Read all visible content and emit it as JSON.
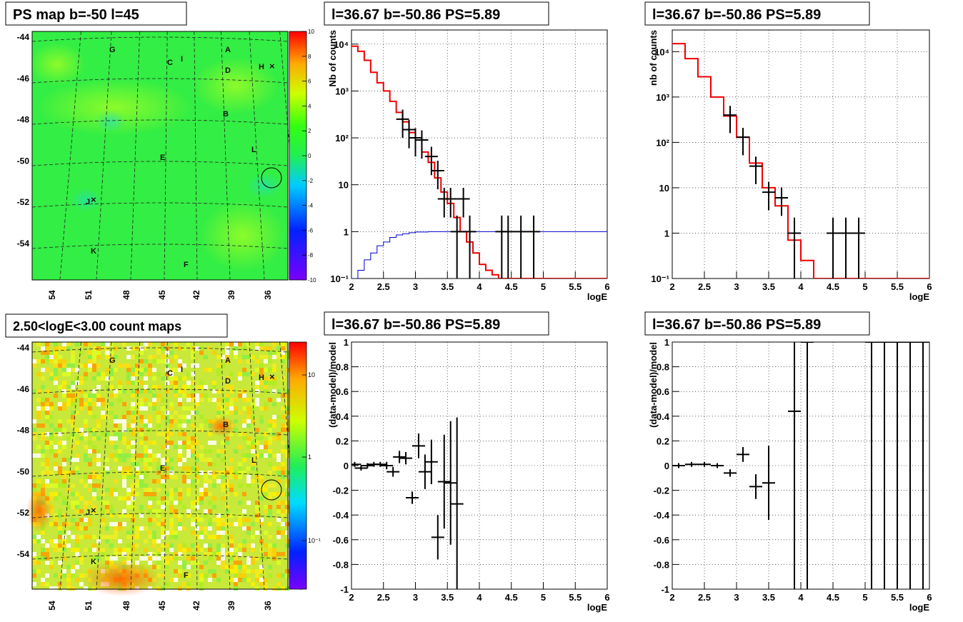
{
  "chart_data": [
    {
      "id": "ps-map",
      "type": "heatmap",
      "title": "PS map b=-50 l=45",
      "xlabel": "",
      "ylabel": "",
      "x_ticks": [
        "54",
        "51",
        "48",
        "45",
        "42",
        "39",
        "36"
      ],
      "y_ticks": [
        "-44",
        "-46",
        "-48",
        "-50",
        "-52",
        "-54"
      ],
      "colorbar_ticks": [
        "10",
        "8",
        "6",
        "4",
        "2",
        "0",
        "-2",
        "-4",
        "-6",
        "-8",
        "-10"
      ],
      "colorbar_range": [
        -10,
        10
      ],
      "source_labels": [
        "A",
        "B",
        "C",
        "D",
        "E",
        "F",
        "G",
        "H",
        "I",
        "J",
        "K",
        "L"
      ],
      "grid": true
    },
    {
      "id": "spectrum-1",
      "type": "line",
      "title": "l=36.67 b=-50.86 PS=5.89",
      "xlabel": "logE",
      "ylabel": "Nb of counts",
      "log_y": true,
      "xlim": [
        2,
        6
      ],
      "ylim": [
        0.1,
        20000
      ],
      "x_ticks": [
        "2",
        "2.5",
        "3",
        "3.5",
        "4",
        "4.5",
        "5",
        "5.5",
        "6"
      ],
      "y_ticks": [
        "10⁴",
        "10³",
        "10²",
        "10",
        "1",
        "10⁻¹"
      ],
      "grid": true,
      "series": [
        {
          "color": "#ee0000",
          "style": "step",
          "x": [
            2.0,
            2.1,
            2.2,
            2.3,
            2.4,
            2.5,
            2.6,
            2.7,
            2.8,
            2.9,
            3.0,
            3.1,
            3.2,
            3.3,
            3.4,
            3.5,
            3.6,
            3.7,
            3.8,
            3.9,
            4.0,
            4.1,
            4.2,
            4.3,
            4.4,
            6.0
          ],
          "y": [
            9000,
            7000,
            4500,
            2500,
            1500,
            1000,
            600,
            350,
            220,
            130,
            90,
            50,
            30,
            14,
            7,
            4,
            2,
            1,
            0.6,
            0.35,
            0.2,
            0.15,
            0.12,
            0.1,
            0.1,
            0.1
          ]
        },
        {
          "color": "#0000cc",
          "style": "step",
          "x": [
            2.0,
            2.1,
            2.2,
            2.3,
            2.4,
            2.5,
            2.6,
            2.7,
            2.8,
            2.9,
            3.0,
            3.2,
            3.5,
            4.0,
            6.0
          ],
          "y": [
            0.1,
            0.15,
            0.25,
            0.35,
            0.5,
            0.6,
            0.75,
            0.85,
            0.9,
            0.95,
            0.98,
            1,
            1,
            1,
            1
          ]
        },
        {
          "color": "#000000",
          "style": "errorbar",
          "x": [
            2.8,
            2.9,
            3.0,
            3.1,
            3.25,
            3.35,
            3.45,
            3.55,
            3.65,
            3.75,
            3.85,
            4.35,
            4.45,
            4.65,
            4.85
          ],
          "y": [
            250,
            150,
            100,
            90,
            40,
            20,
            5,
            5,
            1,
            5,
            1,
            1,
            1,
            1,
            1
          ]
        }
      ]
    },
    {
      "id": "spectrum-2",
      "type": "line",
      "title": "l=36.67 b=-50.86 PS=5.89",
      "xlabel": "logE",
      "ylabel": "nb of counts",
      "log_y": true,
      "xlim": [
        2,
        6
      ],
      "ylim": [
        0.1,
        30000
      ],
      "x_ticks": [
        "2",
        "2.5",
        "3",
        "3.5",
        "4",
        "4.5",
        "5",
        "5.5",
        "6"
      ],
      "y_ticks": [
        "10⁴",
        "10³",
        "10²",
        "10",
        "1",
        "10⁻¹"
      ],
      "grid": true,
      "series": [
        {
          "color": "#ee0000",
          "style": "step",
          "x": [
            2.0,
            2.2,
            2.4,
            2.6,
            2.8,
            3.0,
            3.2,
            3.4,
            3.6,
            3.8,
            4.0,
            4.2,
            6.0
          ],
          "y": [
            15000,
            7000,
            2800,
            1000,
            380,
            130,
            35,
            10,
            4,
            0.7,
            0.25,
            0.1,
            0.1
          ]
        },
        {
          "color": "#000000",
          "style": "errorbar",
          "x": [
            2.9,
            3.1,
            3.3,
            3.5,
            3.7,
            3.9,
            4.5,
            4.7,
            4.9
          ],
          "y": [
            400,
            130,
            30,
            8,
            6,
            1,
            1,
            1,
            1
          ]
        }
      ]
    },
    {
      "id": "count-map",
      "type": "heatmap",
      "title": "2.50<logE<3.00 count maps",
      "xlabel": "",
      "ylabel": "",
      "log_color": true,
      "x_ticks": [
        "54",
        "51",
        "48",
        "45",
        "42",
        "39",
        "36"
      ],
      "y_ticks": [
        "-44",
        "-46",
        "-48",
        "-50",
        "-52",
        "-54"
      ],
      "colorbar_ticks": [
        "10",
        "1",
        "10⁻¹"
      ],
      "source_labels": [
        "A",
        "B",
        "C",
        "D",
        "E",
        "F",
        "G",
        "H",
        "I",
        "J",
        "K",
        "L"
      ],
      "grid": true
    },
    {
      "id": "residual-1",
      "type": "scatter",
      "title": "l=36.67 b=-50.86 PS=5.89",
      "xlabel": "logE",
      "ylabel": "(data-model)/model",
      "xlim": [
        2,
        6
      ],
      "ylim": [
        -1,
        1
      ],
      "x_ticks": [
        "2",
        "2.5",
        "3",
        "3.5",
        "4",
        "4.5",
        "5",
        "5.5",
        "6"
      ],
      "y_ticks": [
        "1",
        "0.8",
        "0.6",
        "0.4",
        "0.2",
        "0",
        "-0.2",
        "-0.4",
        "-0.6",
        "-0.8",
        "-1"
      ],
      "grid": true,
      "x": [
        2.05,
        2.15,
        2.25,
        2.35,
        2.45,
        2.55,
        2.65,
        2.75,
        2.85,
        2.95,
        3.05,
        3.15,
        3.25,
        3.35,
        3.45,
        3.55,
        3.65
      ],
      "y": [
        0.01,
        -0.02,
        0.0,
        0.01,
        0.01,
        0.0,
        -0.05,
        0.07,
        0.06,
        -0.26,
        0.16,
        -0.05,
        0.03,
        -0.58,
        -0.13,
        -0.14,
        -0.31
      ],
      "err": [
        0.02,
        0.02,
        0.02,
        0.02,
        0.02,
        0.03,
        0.04,
        0.05,
        0.05,
        0.05,
        0.1,
        0.14,
        0.18,
        0.18,
        0.38,
        0.5,
        0.7
      ]
    },
    {
      "id": "residual-2",
      "type": "scatter",
      "title": "l=36.67 b=-50.86 PS=5.89",
      "xlabel": "logE",
      "ylabel": "(data-model)/model",
      "xlim": [
        2,
        6
      ],
      "ylim": [
        -1,
        1
      ],
      "x_ticks": [
        "2",
        "2.5",
        "3",
        "3.5",
        "4",
        "4.5",
        "5",
        "5.5",
        "6"
      ],
      "y_ticks": [
        "1",
        "0.8",
        "0.6",
        "0.4",
        "0.2",
        "0",
        "-0.2",
        "-0.4",
        "-0.6",
        "-0.8",
        "-1"
      ],
      "grid": true,
      "x": [
        2.1,
        2.3,
        2.5,
        2.7,
        2.9,
        3.1,
        3.3,
        3.5,
        3.9,
        4.1,
        5.1,
        5.3,
        5.5,
        5.7,
        5.9
      ],
      "y": [
        0.0,
        0.01,
        0.01,
        0.0,
        -0.06,
        0.09,
        -0.17,
        -0.14,
        0.44,
        1.0,
        1.0,
        1.0,
        1.0,
        1.0,
        1.0
      ],
      "err": [
        0.02,
        0.02,
        0.02,
        0.02,
        0.03,
        0.06,
        0.1,
        0.3,
        1.5,
        2.0,
        2.0,
        2.0,
        2.0,
        2.0,
        2.0
      ]
    }
  ]
}
